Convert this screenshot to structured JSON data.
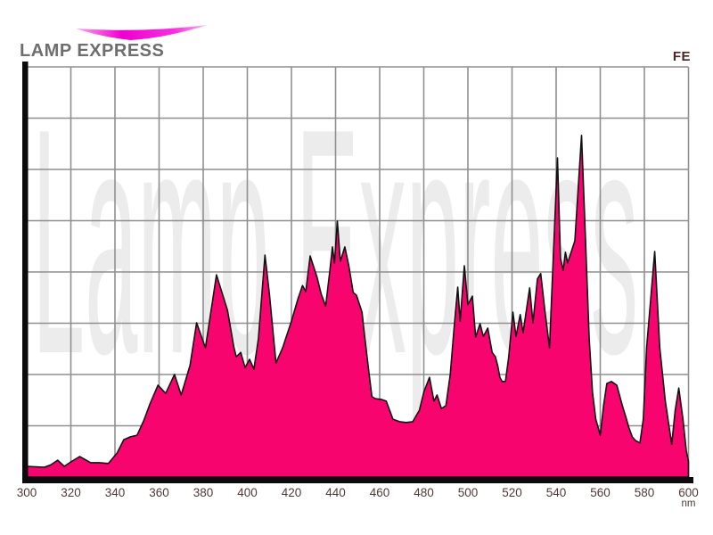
{
  "brand": {
    "name": "LAMP EXPRESS"
  },
  "chart": {
    "corner_label": "FE",
    "watermark": "Lamp Express",
    "colors": {
      "area": "#f8046f",
      "outline": "#111111",
      "grid": "#8f8f8f",
      "axis": "#0b0b0b",
      "watermark": "#ececec",
      "tick_label": "#4f3939",
      "brand_text": "#6e6e6e",
      "corner_label": "#4a2323",
      "swoosh": "#ee00cf"
    }
  },
  "chart_data": {
    "type": "area",
    "title": "",
    "xlabel": "nm",
    "ylabel": "",
    "x_range": [
      300,
      600
    ],
    "x_ticks": [
      300,
      320,
      340,
      360,
      380,
      400,
      420,
      440,
      460,
      480,
      500,
      520,
      540,
      560,
      580,
      600
    ],
    "y_divisions": 8,
    "ylim": [
      0,
      100
    ],
    "grid": true,
    "legend": "none",
    "y_axis_tick_labels": "none",
    "series": [
      {
        "name": "relative_intensity",
        "points": [
          [
            300,
            2.6
          ],
          [
            304,
            2.5
          ],
          [
            308,
            2.4
          ],
          [
            311,
            3.0
          ],
          [
            314,
            4.1
          ],
          [
            317,
            2.6
          ],
          [
            320,
            3.7
          ],
          [
            324,
            5.0
          ],
          [
            329,
            3.5
          ],
          [
            333,
            3.5
          ],
          [
            337,
            3.3
          ],
          [
            341,
            5.9
          ],
          [
            344,
            9.1
          ],
          [
            347,
            9.8
          ],
          [
            350,
            10.2
          ],
          [
            353,
            13.7
          ],
          [
            356,
            18.0
          ],
          [
            359.5,
            22.4
          ],
          [
            363,
            20.4
          ],
          [
            367,
            25.0
          ],
          [
            370,
            20.0
          ],
          [
            374,
            27.2
          ],
          [
            377,
            37.6
          ],
          [
            381,
            31.5
          ],
          [
            386,
            49.3
          ],
          [
            391,
            40.7
          ],
          [
            394,
            31.5
          ],
          [
            395,
            29.3
          ],
          [
            397,
            30.4
          ],
          [
            399,
            26.7
          ],
          [
            401,
            28.7
          ],
          [
            403,
            26.3
          ],
          [
            405,
            33.7
          ],
          [
            408,
            54.1
          ],
          [
            410,
            44.6
          ],
          [
            413,
            27.8
          ],
          [
            416,
            31.5
          ],
          [
            420,
            38.0
          ],
          [
            423,
            43.5
          ],
          [
            425,
            46.7
          ],
          [
            426.5,
            45.2
          ],
          [
            428.5,
            53.9
          ],
          [
            431.5,
            48.9
          ],
          [
            433.5,
            44.6
          ],
          [
            435.5,
            41.7
          ],
          [
            437.5,
            50.7
          ],
          [
            438.6,
            56.1
          ],
          [
            439.5,
            52.2
          ],
          [
            440.8,
            62.4
          ],
          [
            442.2,
            52.6
          ],
          [
            444.2,
            56.1
          ],
          [
            446,
            51.5
          ],
          [
            448,
            45.0
          ],
          [
            449.5,
            44.3
          ],
          [
            452,
            40.2
          ],
          [
            453,
            35.2
          ],
          [
            455,
            26.1
          ],
          [
            456.5,
            19.6
          ],
          [
            458,
            19.1
          ],
          [
            461,
            18.9
          ],
          [
            463,
            18.5
          ],
          [
            466,
            14.1
          ],
          [
            469,
            13.5
          ],
          [
            472,
            13.3
          ],
          [
            475,
            13.5
          ],
          [
            478,
            16.3
          ],
          [
            480,
            20.7
          ],
          [
            482.6,
            24.3
          ],
          [
            484.6,
            18.5
          ],
          [
            486,
            20.0
          ],
          [
            488,
            16.7
          ],
          [
            490,
            17.4
          ],
          [
            492,
            25.0
          ],
          [
            494,
            38.0
          ],
          [
            495.4,
            46.3
          ],
          [
            496.5,
            38.0
          ],
          [
            498.4,
            51.5
          ],
          [
            500,
            42.0
          ],
          [
            502,
            44.1
          ],
          [
            503.5,
            34.1
          ],
          [
            505.5,
            37.4
          ],
          [
            507,
            34.3
          ],
          [
            509,
            36.3
          ],
          [
            511,
            30.4
          ],
          [
            512.5,
            29.3
          ],
          [
            513.5,
            27.2
          ],
          [
            514.5,
            24.3
          ],
          [
            515.5,
            23.3
          ],
          [
            517,
            23.3
          ],
          [
            518.5,
            29.3
          ],
          [
            520.4,
            40.2
          ],
          [
            521.8,
            34.3
          ],
          [
            523.7,
            39.6
          ],
          [
            525,
            35.2
          ],
          [
            528,
            46.1
          ],
          [
            529.5,
            37.6
          ],
          [
            531.5,
            48.3
          ],
          [
            533,
            49.6
          ],
          [
            535,
            40.2
          ],
          [
            537,
            31.5
          ],
          [
            538.5,
            51.1
          ],
          [
            540.6,
            77.8
          ],
          [
            542,
            53.3
          ],
          [
            543.2,
            50.4
          ],
          [
            544.2,
            54.8
          ],
          [
            545.2,
            52.2
          ],
          [
            546.8,
            54.8
          ],
          [
            548.5,
            57.6
          ],
          [
            551.5,
            83.3
          ],
          [
            553.5,
            55.4
          ],
          [
            555,
            33.7
          ],
          [
            556.5,
            20.7
          ],
          [
            558,
            14.1
          ],
          [
            560,
            10.2
          ],
          [
            561.5,
            17.4
          ],
          [
            563,
            22.8
          ],
          [
            565,
            23.3
          ],
          [
            567.5,
            22.4
          ],
          [
            570,
            17.4
          ],
          [
            571.5,
            14.8
          ],
          [
            573,
            12.0
          ],
          [
            574.5,
            9.8
          ],
          [
            576,
            8.9
          ],
          [
            578,
            8.3
          ],
          [
            579.5,
            14.1
          ],
          [
            581,
            31.5
          ],
          [
            584.7,
            55.0
          ],
          [
            587,
            31.5
          ],
          [
            589.5,
            18.5
          ],
          [
            592.4,
            8.0
          ],
          [
            594,
            16.3
          ],
          [
            595.6,
            21.7
          ],
          [
            597.5,
            14.1
          ],
          [
            599,
            6.5
          ],
          [
            600,
            3.7
          ]
        ]
      }
    ]
  }
}
